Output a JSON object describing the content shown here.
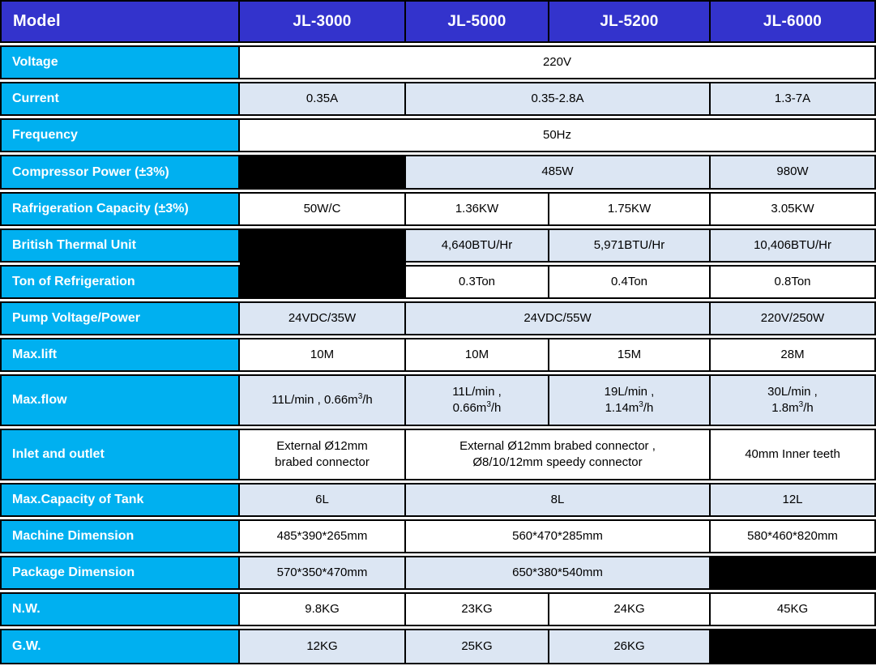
{
  "palette": {
    "header_blue": "#3333cc",
    "label_cyan": "#00b0f0",
    "tint_row": "#dce6f3",
    "blackout_cell": "#000000",
    "grid_line": "#000000",
    "header_text": "#ffffff",
    "data_text": "#000000"
  },
  "header": {
    "model_label": "Model",
    "models": [
      "JL-3000",
      "JL-5000",
      "JL-5200",
      "JL-6000"
    ]
  },
  "rows": {
    "voltage": {
      "label": "Voltage",
      "all": "220V"
    },
    "current": {
      "label": "Current",
      "jl3000": "0.35A",
      "jl5000_5200": "0.35-2.8A",
      "jl6000": "1.3-7A"
    },
    "frequency": {
      "label": "Frequency",
      "all": "50Hz"
    },
    "compressor_power": {
      "label": "Compressor Power (±3%)",
      "jl5000_5200": "485W",
      "jl6000": "980W"
    },
    "refrigeration_capacity": {
      "label": "Rafrigeration Capacity (±3%)",
      "jl3000": "50W/C",
      "jl5000": "1.36KW",
      "jl5200": "1.75KW",
      "jl6000": "3.05KW"
    },
    "btu": {
      "label": "British Thermal Unit",
      "jl5000": "4,640BTU/Hr",
      "jl5200": "5,971BTU/Hr",
      "jl6000": "10,406BTU/Hr"
    },
    "ton": {
      "label": "Ton of Refrigeration",
      "jl5000": "0.3Ton",
      "jl5200": "0.4Ton",
      "jl6000": "0.8Ton"
    },
    "pump": {
      "label": "Pump Voltage/Power",
      "jl3000": "24VDC/35W",
      "jl5000_5200": "24VDC/55W",
      "jl6000": "220V/250W"
    },
    "max_lift": {
      "label": "Max.lift",
      "jl3000": "10M",
      "jl5000": "10M",
      "jl5200": "15M",
      "jl6000": "28M"
    },
    "max_flow": {
      "label": "Max.flow",
      "jl3000": {
        "p1": "11L/min , 0.66m",
        "sup": "3",
        "p2": "/h"
      },
      "jl5000": {
        "p0": "11L/min ,",
        "p1": "0.66m",
        "sup": "3",
        "p2": "/h"
      },
      "jl5200": {
        "p0": "19L/min ,",
        "p1": "1.14m",
        "sup": "3",
        "p2": "/h"
      },
      "jl6000": {
        "p0": "30L/min ,",
        "p1": "1.8m",
        "sup": "3",
        "p2": "/h"
      }
    },
    "inlet_outlet": {
      "label": "Inlet and outlet",
      "jl3000": {
        "line1": "External Ø12mm",
        "line2": "brabed connector"
      },
      "jl5000_5200": {
        "line1": "External Ø12mm brabed connector ,",
        "line2": "Ø8/10/12mm speedy connector"
      },
      "jl6000": "40mm Inner teeth"
    },
    "tank_capacity": {
      "label": "Max.Capacity of Tank",
      "jl3000": "6L",
      "jl5000_5200": "8L",
      "jl6000": "12L"
    },
    "machine_dimension": {
      "label": "Machine Dimension",
      "jl3000": "485*390*265mm",
      "jl5000_5200": "560*470*285mm",
      "jl6000": "580*460*820mm"
    },
    "package_dimension": {
      "label": "Package Dimension",
      "jl3000": "570*350*470mm",
      "jl5000_5200": "650*380*540mm"
    },
    "nw": {
      "label": "N.W.",
      "jl3000": "9.8KG",
      "jl5000": "23KG",
      "jl5200": "24KG",
      "jl6000": "45KG"
    },
    "gw": {
      "label": "G.W.",
      "jl3000": "12KG",
      "jl5000": "25KG",
      "jl5200": "26KG"
    }
  }
}
